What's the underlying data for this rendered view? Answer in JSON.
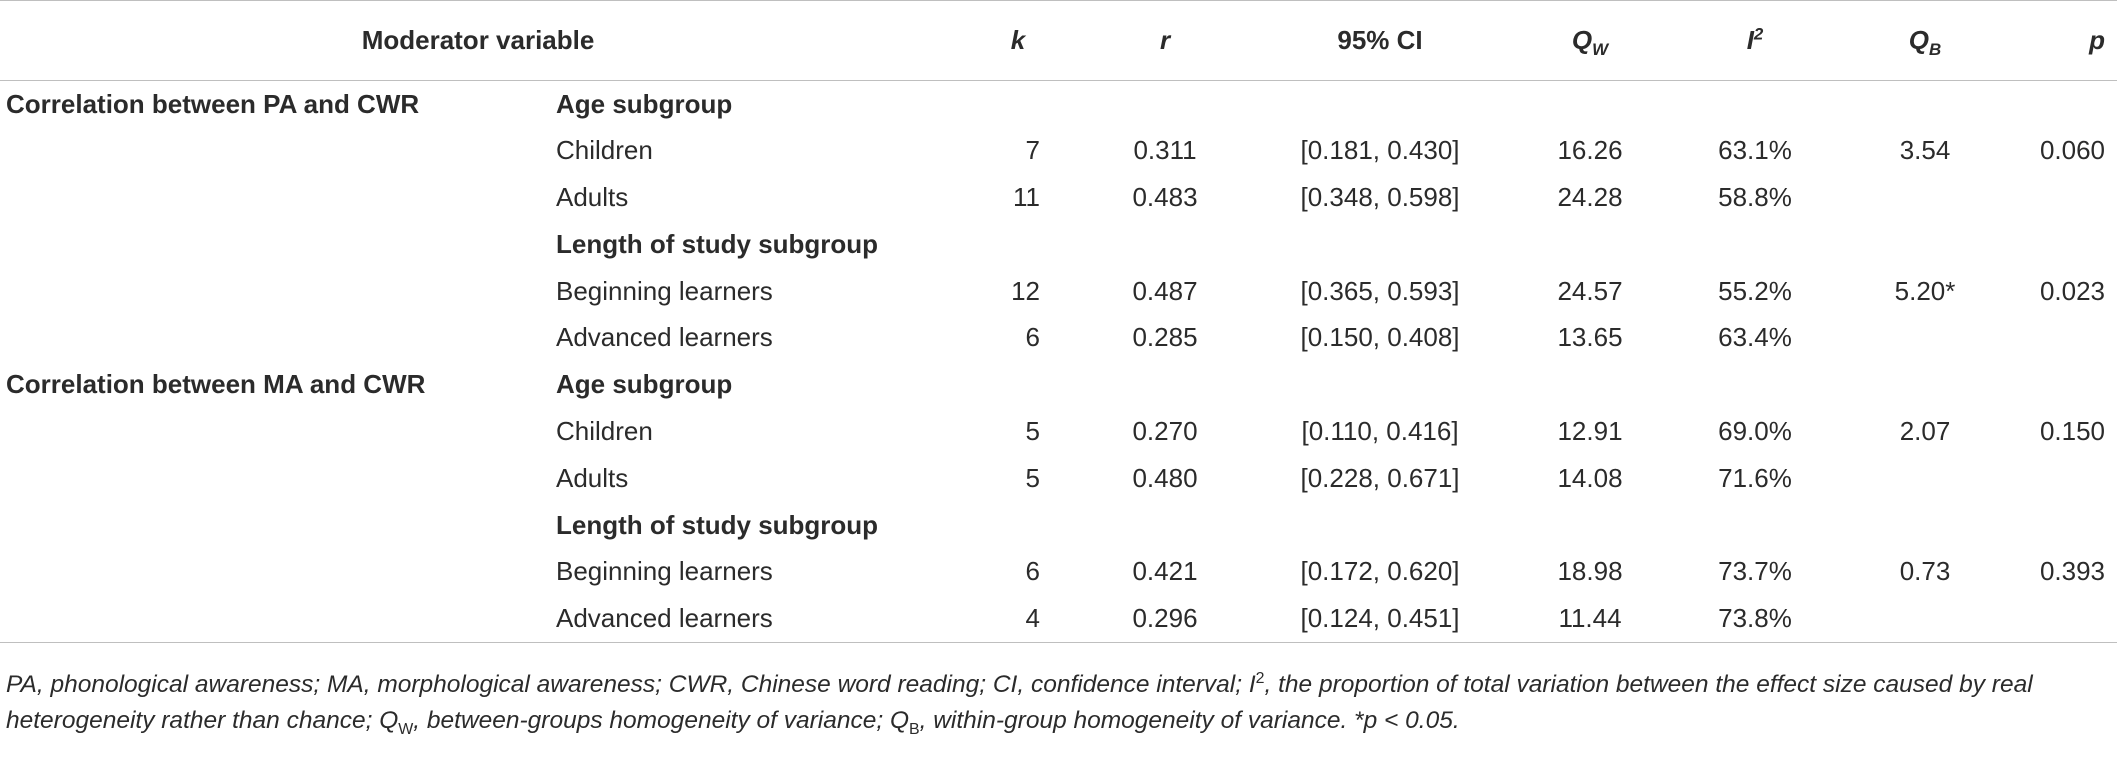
{
  "headers": {
    "moderator": "Moderator variable",
    "k": "k",
    "r": "r",
    "ci": "95% CI",
    "qw_main": "Q",
    "qw_sub": "W",
    "i2_main": "I",
    "i2_sup": "2",
    "qb_main": "Q",
    "qb_sub": "B",
    "p": "p"
  },
  "rows": [
    {
      "group": "Correlation between PA and CWR",
      "sub": "Age subgroup",
      "bold_sub": true
    },
    {
      "sub": "Children",
      "k": "7",
      "r": "0.311",
      "ci": "[0.181, 0.430]",
      "qw": "16.26",
      "i2": "63.1%",
      "qb": "3.54",
      "p": "0.060"
    },
    {
      "sub": "Adults",
      "k": "11",
      "r": "0.483",
      "ci": "[0.348, 0.598]",
      "qw": "24.28",
      "i2": "58.8%"
    },
    {
      "sub": "Length of study subgroup",
      "bold_sub": true
    },
    {
      "sub": "Beginning learners",
      "k": "12",
      "r": "0.487",
      "ci": "[0.365, 0.593]",
      "qw": "24.57",
      "i2": "55.2%",
      "qb": "5.20*",
      "p": "0.023"
    },
    {
      "sub": "Advanced learners",
      "k": "6",
      "r": "0.285",
      "ci": "[0.150, 0.408]",
      "qw": "13.65",
      "i2": "63.4%"
    },
    {
      "group": "Correlation between MA and CWR",
      "sub": "Age subgroup",
      "bold_sub": true
    },
    {
      "sub": "Children",
      "k": "5",
      "r": "0.270",
      "ci": "[0.110, 0.416]",
      "qw": "12.91",
      "i2": "69.0%",
      "qb": "2.07",
      "p": "0.150"
    },
    {
      "sub": "Adults",
      "k": "5",
      "r": "0.480",
      "ci": "[0.228, 0.671]",
      "qw": "14.08",
      "i2": "71.6%"
    },
    {
      "sub": "Length of study subgroup",
      "bold_sub": true
    },
    {
      "sub": "Beginning learners",
      "k": "6",
      "r": "0.421",
      "ci": "[0.172, 0.620]",
      "qw": "18.98",
      "i2": "73.7%",
      "qb": "0.73",
      "p": "0.393"
    },
    {
      "sub": "Advanced learners",
      "k": "4",
      "r": "0.296",
      "ci": "[0.124, 0.451]",
      "qw": "11.44",
      "i2": "73.8%"
    }
  ],
  "footnote": {
    "part1": "PA, phonological awareness; MA, morphological awareness; CWR, Chinese word reading; CI, confidence interval; I",
    "i2_sup": "2",
    "part2": ", the proportion of total variation between the effect size caused by real heterogeneity rather than chance; Q",
    "qw_sub": "W",
    "part3": ", between-groups homogeneity of variance; Q",
    "qb_sub": "B",
    "part4": ", within-group homogeneity of variance. *p < 0.05."
  }
}
